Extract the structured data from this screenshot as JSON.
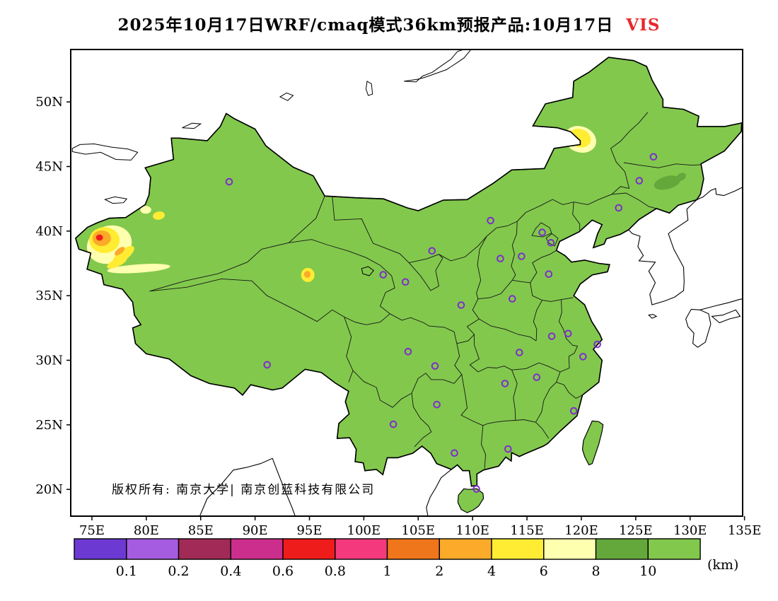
{
  "title": {
    "text": "2025年10月17日WRF/cmaq模式36km预报产品:10月17日",
    "highlight": "VIS"
  },
  "watermark": "版权所有: 南京大学| 南京创蓝科技有限公司",
  "chart_data": {
    "type": "heatmap",
    "subtype": "geographic-filled-contour-forecast-map",
    "region": "China",
    "variable": "visibility",
    "unit": "km",
    "lon_range": [
      73.05,
      134.83
    ],
    "lat_range": [
      17.93,
      54.06
    ],
    "x_ticks": [
      "75E",
      "80E",
      "85E",
      "90E",
      "95E",
      "100E",
      "105E",
      "110E",
      "115E",
      "120E",
      "125E",
      "130E",
      "135E"
    ],
    "x_tick_values": [
      75,
      80,
      85,
      90,
      95,
      100,
      105,
      110,
      115,
      120,
      125,
      130,
      135
    ],
    "y_ticks": [
      "20N",
      "25N",
      "30N",
      "35N",
      "40N",
      "45N",
      "50N"
    ],
    "y_tick_values": [
      20,
      25,
      30,
      35,
      40,
      45,
      50
    ],
    "grid": false,
    "base_fill_color": "#82c84d",
    "base_fill_range_km": "10+",
    "marker_color": "#7d2ecc",
    "colorbar": {
      "position": "bottom",
      "colors": [
        "#6c3ad2",
        "#a55ce0",
        "#a12a56",
        "#cc2e8e",
        "#ef1c1c",
        "#f4397d",
        "#f0761c",
        "#fbaa29",
        "#ffec33",
        "#ffffb0",
        "#64a83c",
        "#82c84d"
      ],
      "labels": [
        "0.1",
        "0.2",
        "0.4",
        "0.6",
        "0.8",
        "1",
        "2",
        "4",
        "6",
        "8",
        "10"
      ],
      "boundary_values_km": [
        0.1,
        0.2,
        0.4,
        0.6,
        0.8,
        1,
        2,
        4,
        6,
        8,
        10
      ],
      "unit": "(km)"
    },
    "city_markers": [
      [
        116.4,
        39.9
      ],
      [
        117.2,
        39.1
      ],
      [
        114.5,
        38.05
      ],
      [
        112.55,
        37.87
      ],
      [
        111.65,
        40.82
      ],
      [
        123.43,
        41.8
      ],
      [
        125.32,
        43.9
      ],
      [
        126.63,
        45.75
      ],
      [
        121.47,
        31.23
      ],
      [
        118.78,
        32.07
      ],
      [
        120.15,
        30.28
      ],
      [
        117.28,
        31.86
      ],
      [
        119.3,
        26.08
      ],
      [
        115.89,
        28.68
      ],
      [
        117.0,
        36.67
      ],
      [
        113.65,
        34.76
      ],
      [
        114.3,
        30.6
      ],
      [
        112.98,
        28.2
      ],
      [
        113.26,
        23.13
      ],
      [
        108.33,
        22.82
      ],
      [
        110.35,
        20.03
      ],
      [
        106.55,
        29.56
      ],
      [
        104.07,
        30.67
      ],
      [
        106.71,
        26.57
      ],
      [
        102.71,
        25.04
      ],
      [
        91.11,
        29.65
      ],
      [
        108.95,
        34.27
      ],
      [
        103.82,
        36.06
      ],
      [
        101.78,
        36.62
      ],
      [
        106.27,
        38.47
      ],
      [
        87.62,
        43.82
      ]
    ],
    "patches": [
      {
        "lon": 76.6,
        "lat": 38.95,
        "rx": 2.1,
        "ry": 1.45,
        "rot": -20,
        "color": "#ffffb0",
        "range_km": "6-8"
      },
      {
        "lon": 79.3,
        "lat": 37.1,
        "rx": 2.9,
        "ry": 0.33,
        "rot": -4,
        "color": "#ffffb0",
        "range_km": "6-8"
      },
      {
        "lon": 79.95,
        "lat": 41.65,
        "rx": 0.5,
        "ry": 0.3,
        "rot": 0,
        "color": "#ffffb0",
        "range_km": "6-8"
      },
      {
        "lon": 119.9,
        "lat": 47.1,
        "rx": 1.5,
        "ry": 1.0,
        "rot": 20,
        "color": "#ffffb0",
        "range_km": "6-8"
      },
      {
        "lon": 76.15,
        "lat": 39.3,
        "rx": 1.4,
        "ry": 1.0,
        "rot": 0,
        "color": "#ffec33",
        "range_km": "4-6"
      },
      {
        "lon": 77.9,
        "lat": 38.15,
        "rx": 1.2,
        "ry": 0.4,
        "rot": -38,
        "color": "#ffec33",
        "range_km": "4-6"
      },
      {
        "lon": 77.3,
        "lat": 37.55,
        "rx": 1.0,
        "ry": 0.3,
        "rot": -25,
        "color": "#ffec33",
        "range_km": "4-6"
      },
      {
        "lon": 81.15,
        "lat": 41.2,
        "rx": 0.55,
        "ry": 0.32,
        "rot": -10,
        "color": "#ffec33",
        "range_km": "4-6"
      },
      {
        "lon": 94.85,
        "lat": 36.6,
        "rx": 0.62,
        "ry": 0.55,
        "rot": 0,
        "color": "#ffec33",
        "range_km": "4-6"
      },
      {
        "lon": 119.85,
        "lat": 47.2,
        "rx": 1.05,
        "ry": 0.7,
        "rot": 20,
        "color": "#ffec33",
        "range_km": "4-6"
      },
      {
        "lon": 75.9,
        "lat": 39.45,
        "rx": 0.85,
        "ry": 0.6,
        "rot": 0,
        "color": "#fbaa29",
        "range_km": "2-4"
      },
      {
        "lon": 77.55,
        "lat": 38.45,
        "rx": 0.55,
        "ry": 0.22,
        "rot": -38,
        "color": "#fbaa29",
        "range_km": "2-4"
      },
      {
        "lon": 94.8,
        "lat": 36.65,
        "rx": 0.3,
        "ry": 0.26,
        "rot": 0,
        "color": "#fbaa29",
        "range_km": "2-4"
      },
      {
        "lon": 75.7,
        "lat": 39.5,
        "rx": 0.32,
        "ry": 0.24,
        "rot": 0,
        "color": "#ef1c1c",
        "range_km": "0.6-0.8"
      },
      {
        "lon": 127.9,
        "lat": 43.75,
        "rx": 1.25,
        "ry": 0.5,
        "rot": -15,
        "color": "#64a83c",
        "range_km": "8-10"
      },
      {
        "lon": 129.2,
        "lat": 44.2,
        "rx": 0.45,
        "ry": 0.28,
        "rot": -30,
        "color": "#64a83c",
        "range_km": "8-10"
      }
    ]
  }
}
